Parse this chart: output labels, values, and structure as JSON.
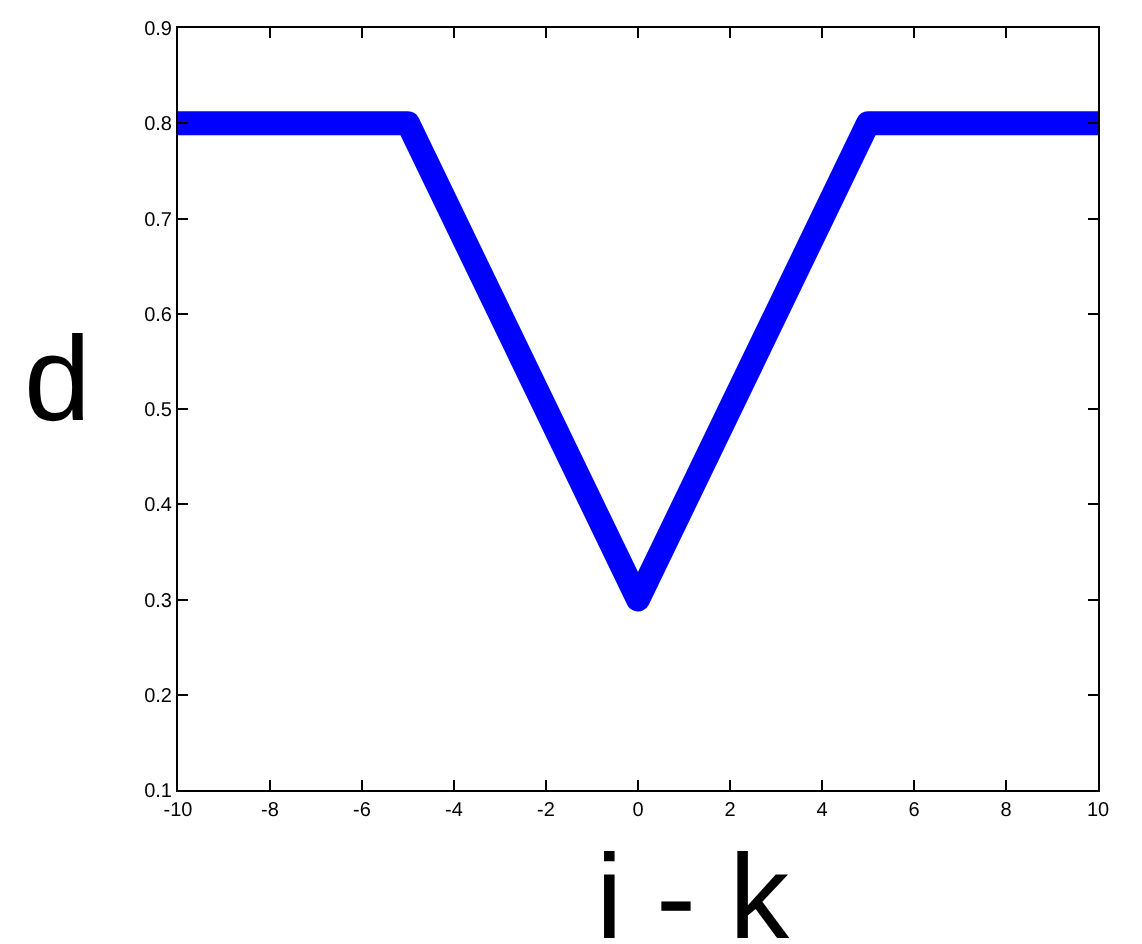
{
  "chart_data": {
    "type": "line",
    "xlabel": "i - k",
    "ylabel": "d",
    "x": [
      -10,
      -5,
      0,
      5,
      10
    ],
    "series": [
      {
        "color": "#0000ff",
        "values": [
          0.8,
          0.8,
          0.3,
          0.8,
          0.8
        ]
      }
    ],
    "xlim": [
      -10,
      10
    ],
    "xticks": [
      -10,
      -8,
      -6,
      -4,
      -2,
      0,
      2,
      4,
      6,
      8,
      10
    ],
    "ylim": [
      0.1,
      0.9
    ],
    "yticks": [
      0.1,
      0.2,
      0.3,
      0.4,
      0.5,
      0.6,
      0.7,
      0.8,
      0.9
    ]
  }
}
